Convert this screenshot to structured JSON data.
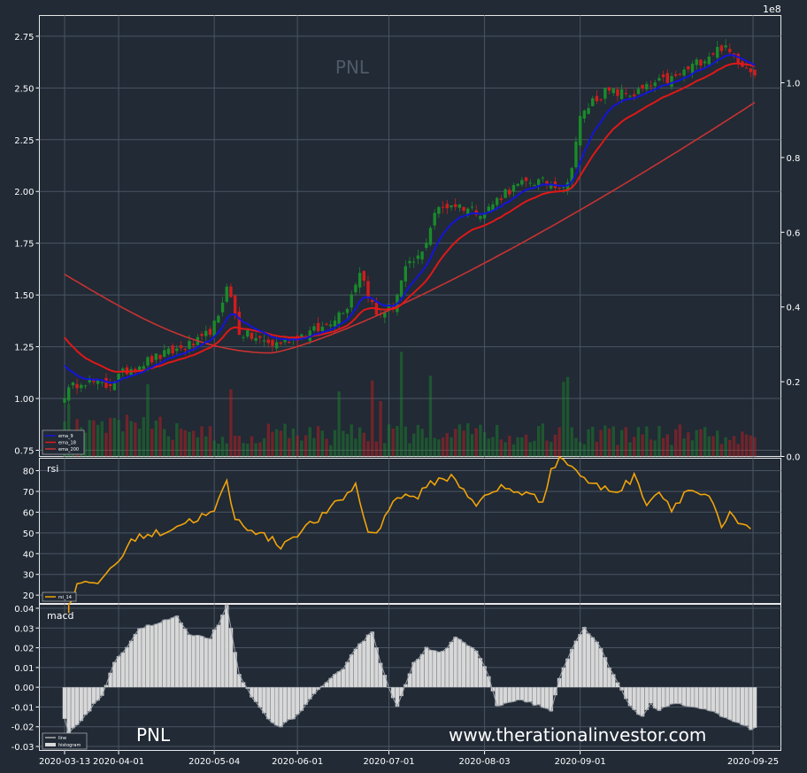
{
  "chart_data": [
    {
      "type": "candlestick",
      "title": "PNL",
      "y_ticks": [
        "0.75",
        "1.00",
        "1.25",
        "1.50",
        "1.75",
        "2.00",
        "2.25",
        "2.50",
        "2.75"
      ],
      "ylim": [
        0.72,
        2.85
      ],
      "volume_axis": {
        "exponent_label": "1e8",
        "ticks": [
          "0.0",
          "0.2",
          "0.4",
          "0.6",
          "0.8",
          "1.0"
        ],
        "ylim": [
          0,
          1.18
        ]
      },
      "legend": [
        "ema_9",
        "ema_18",
        "ema_200"
      ],
      "series_colors": {
        "ema_9": "#1515d8",
        "ema_18": "#e01818",
        "ema_200": "#c83232",
        "up": "#1a8a2a",
        "down": "#d11c1c"
      },
      "close_keypoints": [
        [
          0,
          1.02
        ],
        [
          4,
          1.09
        ],
        [
          10,
          1.06
        ],
        [
          16,
          1.15
        ],
        [
          25,
          1.22
        ],
        [
          33,
          1.28
        ],
        [
          37,
          1.38
        ],
        [
          39,
          1.56
        ],
        [
          42,
          1.32
        ],
        [
          50,
          1.26
        ],
        [
          56,
          1.3
        ],
        [
          62,
          1.34
        ],
        [
          68,
          1.45
        ],
        [
          71,
          1.62
        ],
        [
          75,
          1.4
        ],
        [
          79,
          1.45
        ],
        [
          82,
          1.62
        ],
        [
          86,
          1.7
        ],
        [
          89,
          1.9
        ],
        [
          93,
          1.94
        ],
        [
          97,
          1.92
        ],
        [
          101,
          1.9
        ],
        [
          106,
          2.0
        ],
        [
          112,
          2.05
        ],
        [
          121,
          2.03
        ],
        [
          124,
          2.35
        ],
        [
          127,
          2.44
        ],
        [
          130,
          2.48
        ],
        [
          137,
          2.47
        ],
        [
          142,
          2.52
        ],
        [
          147,
          2.55
        ],
        [
          152,
          2.62
        ],
        [
          158,
          2.7
        ],
        [
          163,
          2.62
        ],
        [
          166,
          2.58
        ]
      ],
      "ema_9_end": 2.62,
      "ema_18_end": 2.6,
      "ema_200_end": 2.43,
      "volume_spike_indices": [
        1,
        20,
        40,
        66,
        74,
        76,
        81,
        88,
        120,
        121
      ]
    },
    {
      "type": "line",
      "title": "rsi",
      "legend": [
        "rsi_14"
      ],
      "y_ticks": [
        "20",
        "30",
        "40",
        "50",
        "60",
        "70",
        "80"
      ],
      "ylim": [
        16,
        86
      ],
      "color": "#f0a30a",
      "keypoints": [
        [
          1,
          12
        ],
        [
          3,
          19
        ],
        [
          4,
          27
        ],
        [
          8,
          24
        ],
        [
          14,
          37
        ],
        [
          18,
          48
        ],
        [
          24,
          50
        ],
        [
          30,
          55
        ],
        [
          37,
          60
        ],
        [
          40,
          75
        ],
        [
          42,
          56
        ],
        [
          46,
          52
        ],
        [
          53,
          44
        ],
        [
          57,
          50
        ],
        [
          63,
          58
        ],
        [
          68,
          67
        ],
        [
          71,
          73
        ],
        [
          74,
          50
        ],
        [
          77,
          52
        ],
        [
          80,
          67
        ],
        [
          86,
          68
        ],
        [
          90,
          75
        ],
        [
          94,
          77
        ],
        [
          97,
          71
        ],
        [
          100,
          64
        ],
        [
          106,
          72
        ],
        [
          112,
          69
        ],
        [
          116,
          65
        ],
        [
          118,
          82
        ],
        [
          121,
          86
        ],
        [
          124,
          80
        ],
        [
          128,
          73
        ],
        [
          134,
          70
        ],
        [
          138,
          77
        ],
        [
          141,
          65
        ],
        [
          144,
          70
        ],
        [
          147,
          62
        ],
        [
          151,
          71
        ],
        [
          155,
          68
        ],
        [
          157,
          64
        ],
        [
          159,
          51
        ],
        [
          161,
          59
        ],
        [
          163,
          55
        ],
        [
          165,
          52
        ]
      ]
    },
    {
      "type": "bar",
      "title": "macd",
      "legend": [
        "line",
        "histogram"
      ],
      "y_ticks": [
        "-0.03",
        "-0.02",
        "-0.01",
        "0.00",
        "0.01",
        "0.02",
        "0.03",
        "0.04"
      ],
      "ylim": [
        -0.032,
        0.042
      ],
      "color": "#d8d8d8",
      "keypoints": [
        [
          0,
          -0.016
        ],
        [
          1,
          -0.024
        ],
        [
          5,
          -0.014
        ],
        [
          9,
          -0.004
        ],
        [
          12,
          0.012
        ],
        [
          18,
          0.03
        ],
        [
          22,
          0.032
        ],
        [
          27,
          0.036
        ],
        [
          30,
          0.026
        ],
        [
          35,
          0.025
        ],
        [
          38,
          0.036
        ],
        [
          39,
          0.041
        ],
        [
          42,
          0.006
        ],
        [
          46,
          -0.008
        ],
        [
          49,
          -0.016
        ],
        [
          52,
          -0.02
        ],
        [
          56,
          -0.014
        ],
        [
          60,
          -0.004
        ],
        [
          63,
          0.002
        ],
        [
          67,
          0.01
        ],
        [
          70,
          0.02
        ],
        [
          74,
          0.028
        ],
        [
          76,
          0.013
        ],
        [
          79,
          -0.006
        ],
        [
          80,
          -0.01
        ],
        [
          84,
          0.012
        ],
        [
          87,
          0.02
        ],
        [
          91,
          0.018
        ],
        [
          94,
          0.026
        ],
        [
          99,
          0.018
        ],
        [
          102,
          0.006
        ],
        [
          104,
          -0.01
        ],
        [
          107,
          -0.007
        ],
        [
          111,
          -0.007
        ],
        [
          115,
          -0.01
        ],
        [
          117,
          -0.012
        ],
        [
          119,
          0.004
        ],
        [
          122,
          0.02
        ],
        [
          125,
          0.03
        ],
        [
          129,
          0.02
        ],
        [
          132,
          0.006
        ],
        [
          136,
          -0.01
        ],
        [
          139,
          -0.015
        ],
        [
          141,
          -0.008
        ],
        [
          143,
          -0.012
        ],
        [
          146,
          -0.008
        ],
        [
          150,
          -0.01
        ],
        [
          153,
          -0.011
        ],
        [
          156,
          -0.012
        ],
        [
          158,
          -0.015
        ],
        [
          161,
          -0.018
        ],
        [
          163,
          -0.019
        ],
        [
          165,
          -0.021
        ]
      ]
    }
  ],
  "x_axis": {
    "labels": [
      "2020-03-13",
      "2020-04-01",
      "2020-05-04",
      "2020-06-01",
      "2020-07-01",
      "2020-08-03",
      "2020-09-01",
      "2020-09-25"
    ],
    "label_indices": [
      0,
      13,
      36,
      56,
      78,
      101,
      124,
      141
    ]
  },
  "watermark": {
    "left": "PNL",
    "right": "www.therationalinvestor.com"
  }
}
